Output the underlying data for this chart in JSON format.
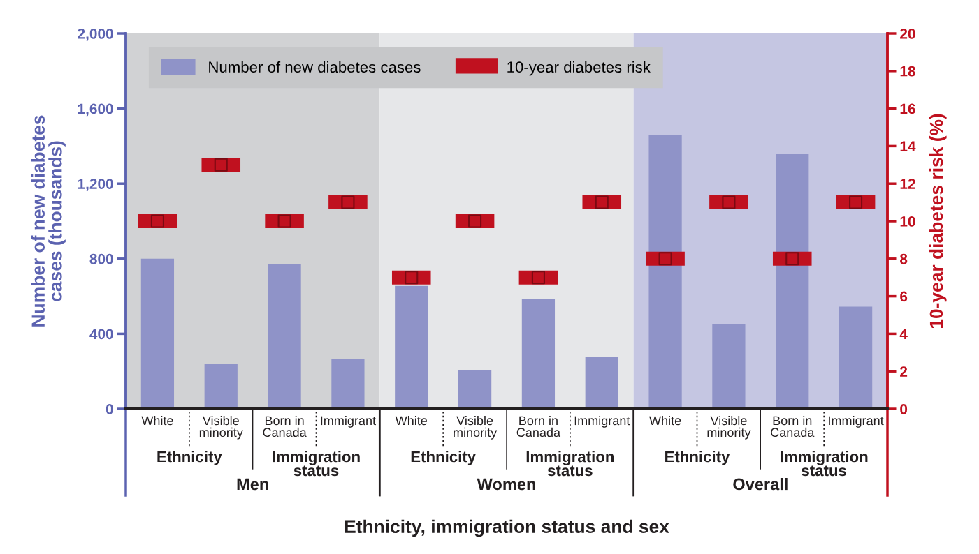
{
  "chart_data": {
    "type": "bar",
    "xlabel": "Ethnicity, immigration status and sex",
    "ylabel": "Number of new diabetes\ncases (thousands)",
    "y2label": "10-year diabetes risk (%)",
    "categories": [
      "White",
      "Visible\nminority",
      "Born in\nCanada",
      "Immigrant",
      "White",
      "Visible\nminority",
      "Born in\nCanada",
      "Immigrant",
      "White",
      "Visible\nminority",
      "Born in\nCanada",
      "Immigrant"
    ],
    "series": [
      {
        "name": "Number of new diabetes cases",
        "color": "#8f93c8",
        "values": [
          800,
          240,
          770,
          265,
          655,
          205,
          585,
          275,
          1460,
          450,
          1360,
          545
        ]
      },
      {
        "name": "10-year diabetes risk",
        "type": "scatter",
        "axis": "y2",
        "color": "#c0111f",
        "values": [
          10,
          13,
          10,
          11,
          7,
          10,
          7,
          11,
          8,
          11,
          8,
          11
        ]
      }
    ],
    "annotations": [
      "Ethnicity",
      "Immigration\nstatus",
      "Ethnicity",
      "Immigration\nstatus",
      "Ethnicity",
      "Immigration\nstatus",
      "Men",
      "Women",
      "Overall"
    ],
    "ylim": [
      0,
      2000
    ],
    "yticks": [
      0,
      400,
      800,
      {
        "value": 1200,
        "label": "1,200"
      },
      {
        "value": 1600,
        "label": "1,600"
      },
      {
        "value": 2000,
        "label": "2,000"
      }
    ],
    "y2lim": [
      0,
      20
    ],
    "y2ticks": [
      0,
      2,
      4,
      6,
      8,
      10,
      12,
      14,
      16,
      18,
      20
    ],
    "legend": "top left"
  }
}
